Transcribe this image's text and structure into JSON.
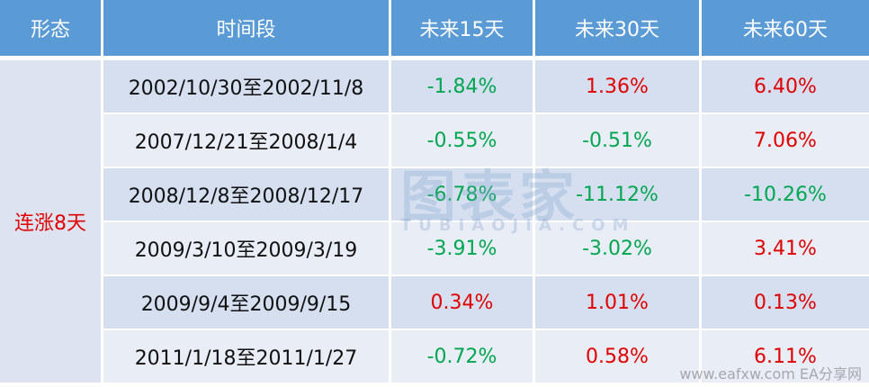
{
  "table": {
    "header": [
      "形态",
      "时间段",
      "未来15天",
      "未来30天",
      "未来60天"
    ],
    "pattern": "连涨8天",
    "rows": [
      [
        "2002/10/30至2002/11/8",
        "-1.84%",
        "1.36%",
        "6.40%"
      ],
      [
        "2007/12/21至2008/1/4",
        "-0.55%",
        "-0.51%",
        "7.06%"
      ],
      [
        "2008/12/8至2008/12/17",
        "-6.78%",
        "-11.12%",
        "-10.26%"
      ],
      [
        "2009/3/10至2009/3/19",
        "-3.91%",
        "-3.02%",
        "3.41%"
      ],
      [
        "2009/9/4至2009/9/15",
        "0.34%",
        "1.01%",
        "0.13%"
      ],
      [
        "2011/1/18至2011/1/27",
        "-0.72%",
        "0.58%",
        "6.11%"
      ]
    ]
  },
  "watermark": {
    "brand": "图表家",
    "url": "TUBIAOJIA.COM",
    "site": "www.eafxw.com  EA分享网"
  }
}
